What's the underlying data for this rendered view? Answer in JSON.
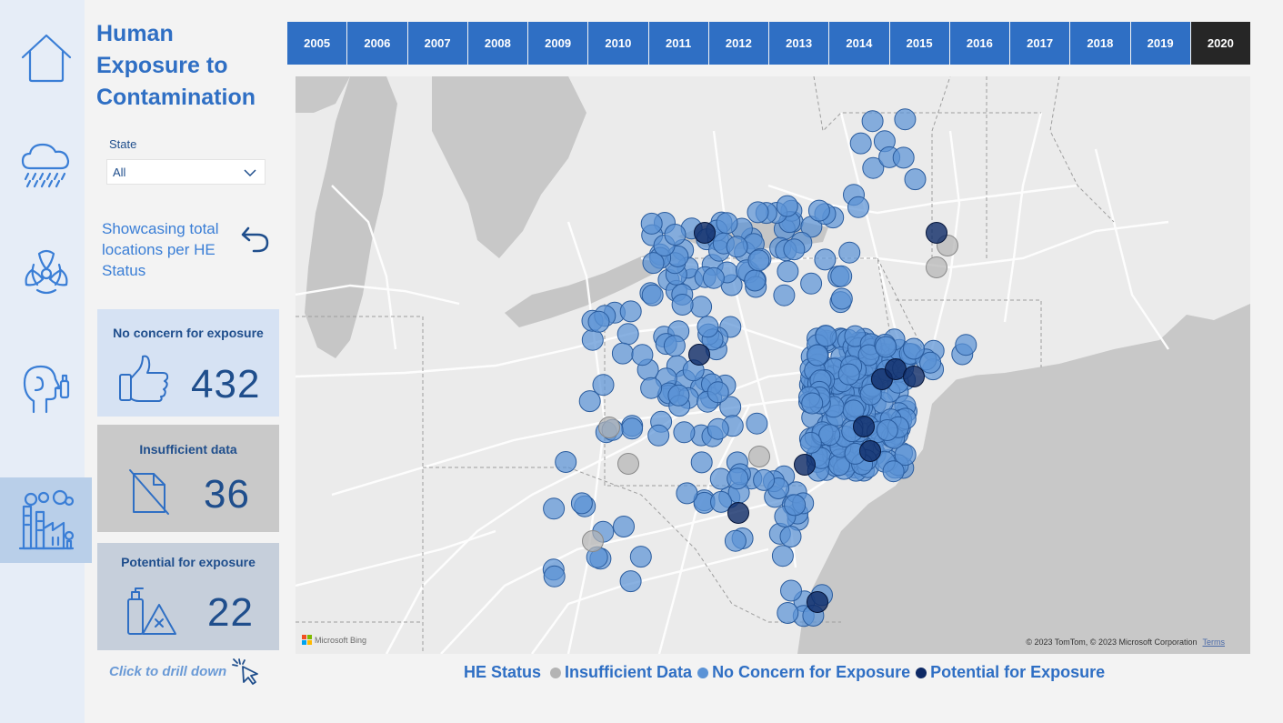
{
  "title": "Human Exposure to Contamination",
  "nav": {
    "items": [
      {
        "icon": "home-icon"
      },
      {
        "icon": "rain-cloud-icon"
      },
      {
        "icon": "biohazard-icon"
      },
      {
        "icon": "inhaler-person-icon"
      },
      {
        "icon": "factory-icon",
        "active": true
      }
    ]
  },
  "state_filter": {
    "label": "State",
    "value": "All"
  },
  "showcase_text": "Showcasing total locations per HE Status",
  "cards": [
    {
      "title": "No concern for exposure",
      "value": "432",
      "icon": "thumbs-up-icon",
      "bg": "#d6e2f3"
    },
    {
      "title": "Insufficient data",
      "value": "36",
      "icon": "no-document-icon",
      "bg": "#c9c9c9"
    },
    {
      "title": "Potential for exposure",
      "value": "22",
      "icon": "hazard-spray-icon",
      "bg": "#c6cfdb"
    }
  ],
  "drill_text": "Click to drill down",
  "years": [
    "2005",
    "2006",
    "2007",
    "2008",
    "2009",
    "2010",
    "2011",
    "2012",
    "2013",
    "2014",
    "2015",
    "2016",
    "2017",
    "2018",
    "2019",
    "2020"
  ],
  "selected_year": "2020",
  "map": {
    "attribution_left": "Microsoft Bing",
    "copyright": "© 2023 TomTom, © 2023 Microsoft Corporation",
    "terms": "Terms"
  },
  "legend": {
    "title": "HE Status",
    "items": [
      {
        "label": "Insufficient Data",
        "color": "#b4b4b4"
      },
      {
        "label": "No Concern for Exposure",
        "color": "#5b93d6"
      },
      {
        "label": "Potential for Exposure",
        "color": "#0e2a66"
      }
    ]
  }
}
